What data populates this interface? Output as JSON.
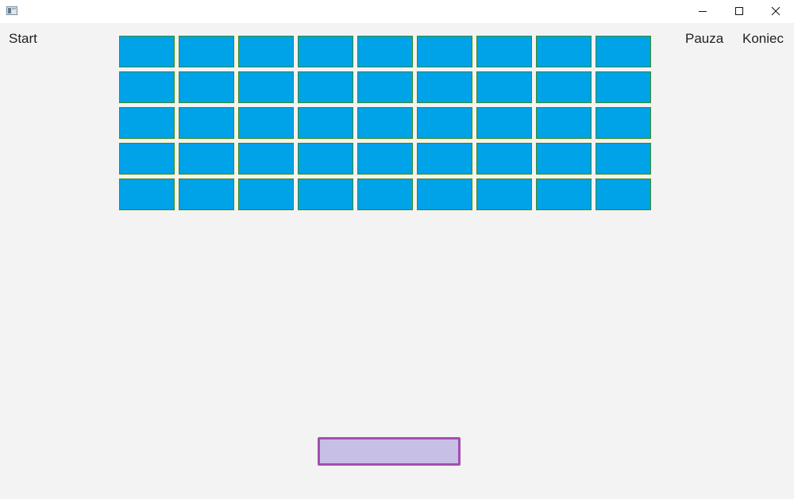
{
  "window": {
    "icon": "app-window-icon",
    "controls": [
      "minimize-icon",
      "maximize-icon",
      "close-icon"
    ]
  },
  "menu": {
    "start": "Start",
    "pause": "Pauza",
    "end": "Koniec"
  },
  "bricks": {
    "rows": 5,
    "columns": 9,
    "fill_color": "#00a2e8",
    "border_color": "#3d8a22"
  },
  "paddle": {
    "fill_color": "#c8bfe7",
    "border_color": "#a24fb0"
  }
}
